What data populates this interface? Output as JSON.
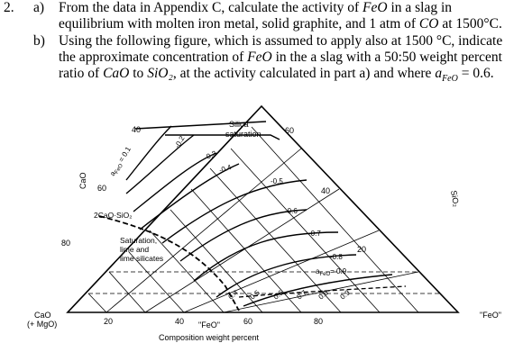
{
  "question": {
    "number": "2.",
    "part_a_label": "a)",
    "part_a_line1_pre": "From the data in Appendix C, calculate the activity of ",
    "part_a_line1_em": "FeO",
    "part_a_line1_post": " in a slag in",
    "part_a_line2_pre": "equilibrium with molten iron metal, solid graphite, and 1 atm of ",
    "part_a_line2_em": "CO",
    "part_a_line2_post": " at 1500°C.",
    "part_b_label": "b)",
    "part_b_line1": "Using the following figure, which is assumed to apply also at 1500 °C, indicate",
    "part_b_line2_pre": "the approximate concentration of ",
    "part_b_line2_em": "FeO",
    "part_b_line2_post": " in the a slag with a 50:50 weight percent",
    "part_b_line3_pre": "ratio of ",
    "part_b_line3_em1": "CaO",
    "part_b_line3_mid": " to ",
    "part_b_line3_em2": "SiO₂",
    "part_b_line3_mid2": ", at the activity calculated in part a) and where ",
    "part_b_line3_em3": "a",
    "part_b_line3_sub": "FeO",
    "part_b_line3_end": " = 0.6."
  },
  "figure": {
    "vertex_cao": "CaO",
    "vertex_cao_sub": "(+ MgO)",
    "vertex_feo": "\"FeO\"",
    "axis_label_feo": "\"FeO\"",
    "axis_title": "Composition weight percent",
    "side_label_cao": "CaO",
    "side_label_sio2": "SiO₂",
    "bottom_ticks": [
      "20",
      "40",
      "60",
      "80"
    ],
    "left_ticks": [
      "80",
      "60",
      "40"
    ],
    "right_ticks": [
      "60",
      "40",
      "20"
    ],
    "region_silica": "Silica",
    "region_silica_2": "saturation",
    "region_c2s": "2CaO·SiO₂",
    "region_sat_1": "Saturation,",
    "region_sat_2": "lime and",
    "region_sat_3": "lime silicates",
    "activity_label": "a",
    "activity_sub": "FeO",
    "activity_eq": " = 0.1",
    "activity_right": "= 0.9",
    "iso_labels": [
      "-0.2",
      "-0.3",
      "-0.4",
      "-0.5",
      "-0.6",
      "-0.7",
      "-0.8"
    ],
    "bottom_iso_labels": [
      "0.4",
      "0.5",
      "0.6",
      "0.7",
      "0.8",
      "0.9"
    ]
  }
}
